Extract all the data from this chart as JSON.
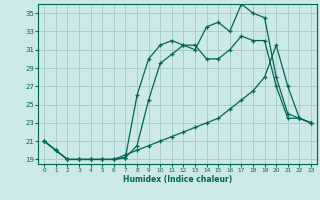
{
  "xlabel": "Humidex (Indice chaleur)",
  "bg_color": "#cce8e8",
  "grid_color": "#aacccc",
  "line_color": "#006655",
  "xlim": [
    -0.5,
    23.5
  ],
  "ylim": [
    18.5,
    36.0
  ],
  "yticks": [
    19,
    21,
    23,
    25,
    27,
    29,
    31,
    33,
    35
  ],
  "xticks": [
    0,
    1,
    2,
    3,
    4,
    5,
    6,
    7,
    8,
    9,
    10,
    11,
    12,
    13,
    14,
    15,
    16,
    17,
    18,
    19,
    20,
    21,
    22,
    23
  ],
  "line1_x": [
    0,
    1,
    2,
    3,
    4,
    5,
    6,
    7,
    8,
    9,
    10,
    11,
    12,
    13,
    14,
    15,
    16,
    17,
    18,
    19,
    20,
    21,
    22,
    23
  ],
  "line1_y": [
    21.0,
    20.0,
    19.0,
    19.0,
    19.0,
    19.0,
    19.0,
    19.2,
    26.0,
    30.0,
    31.5,
    32.0,
    31.5,
    31.0,
    33.5,
    34.0,
    33.0,
    36.0,
    35.0,
    34.5,
    28.0,
    24.0,
    23.5,
    23.0
  ],
  "line2_x": [
    0,
    1,
    2,
    3,
    4,
    5,
    6,
    7,
    8,
    9,
    10,
    11,
    12,
    13,
    14,
    15,
    16,
    17,
    18,
    19,
    20,
    21,
    22,
    23
  ],
  "line2_y": [
    21.0,
    20.0,
    19.0,
    19.0,
    19.0,
    19.0,
    19.0,
    19.2,
    20.5,
    25.5,
    29.5,
    30.5,
    31.5,
    31.5,
    30.0,
    30.0,
    31.0,
    32.5,
    32.0,
    32.0,
    27.0,
    23.5,
    23.5,
    23.0
  ],
  "line3_x": [
    0,
    1,
    2,
    3,
    4,
    5,
    6,
    7,
    8,
    9,
    10,
    11,
    12,
    13,
    14,
    15,
    16,
    17,
    18,
    19,
    20,
    21,
    22,
    23
  ],
  "line3_y": [
    21.0,
    20.0,
    19.0,
    19.0,
    19.0,
    19.0,
    19.0,
    19.5,
    20.0,
    20.5,
    21.0,
    21.5,
    22.0,
    22.5,
    23.0,
    23.5,
    24.5,
    25.5,
    26.5,
    28.0,
    31.5,
    27.0,
    23.5,
    23.0
  ]
}
